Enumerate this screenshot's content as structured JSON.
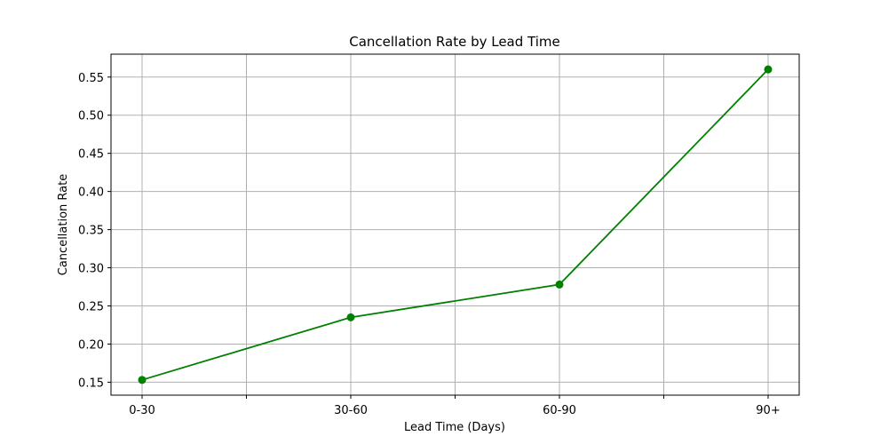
{
  "chart_data": {
    "type": "line",
    "title": "Cancellation Rate by Lead Time",
    "xlabel": "Lead Time (Days)",
    "ylabel": "Cancellation Rate",
    "categories": [
      "0-30",
      "30-60",
      "60-90",
      "90+"
    ],
    "series": [
      {
        "values": [
          0.153,
          0.235,
          0.278,
          0.56
        ],
        "color": "#008000",
        "marker": "circle"
      }
    ],
    "ylim": [
      0.133,
      0.58
    ],
    "yticks": [
      "0.15",
      "0.20",
      "0.25",
      "0.30",
      "0.35",
      "0.40",
      "0.45",
      "0.50",
      "0.55"
    ],
    "grid": true
  }
}
